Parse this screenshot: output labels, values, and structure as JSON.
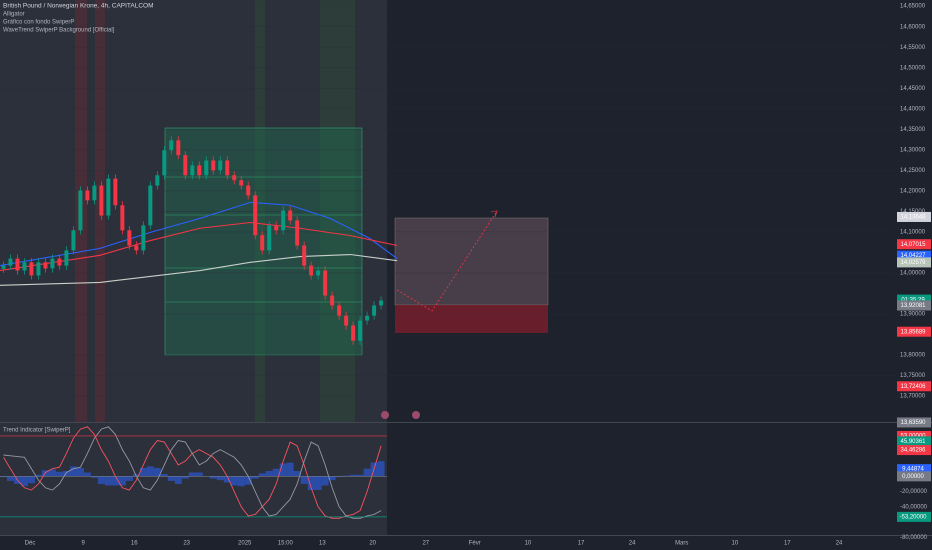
{
  "chart_data": [
    {
      "type": "candlestick",
      "title": "British Pound / Norwegian Krone, 4h, CAPITALCOM",
      "indicators": [
        "Alligator",
        "Gráfico con fondo SwiperP",
        "WaveTrend SwiperP Background [Official]"
      ],
      "x": [
        0,
        1,
        2,
        3,
        4,
        5,
        6,
        7,
        8,
        9,
        10,
        11,
        12,
        13,
        14,
        15,
        16,
        17,
        18,
        19,
        20,
        21,
        22,
        23,
        24,
        25,
        26,
        27,
        28,
        29,
        30,
        31,
        32,
        33,
        34,
        35,
        36,
        37,
        38,
        39,
        40,
        41,
        42,
        43,
        44,
        45,
        46,
        47,
        48,
        49,
        50,
        51,
        52,
        53,
        54
      ],
      "open": [
        14.01,
        14.018,
        14.035,
        14.006,
        14.026,
        13.994,
        14.026,
        14.011,
        14.035,
        14.018,
        14.055,
        14.104,
        14.201,
        14.177,
        14.213,
        14.14,
        14.23,
        14.165,
        14.104,
        14.067,
        14.055,
        14.116,
        14.213,
        14.238,
        14.299,
        14.323,
        14.287,
        14.238,
        14.262,
        14.238,
        14.274,
        14.25,
        14.274,
        14.238,
        14.226,
        14.213,
        14.189,
        14.092,
        14.055,
        14.116,
        14.104,
        14.152,
        14.128,
        14.067,
        14.018,
        13.994,
        14.006,
        13.945,
        13.921,
        13.896,
        13.872,
        13.835,
        13.884,
        13.896,
        13.921
      ],
      "high": [
        14.028,
        14.045,
        14.045,
        14.036,
        14.036,
        14.036,
        14.036,
        14.045,
        14.045,
        14.065,
        14.114,
        14.211,
        14.211,
        14.223,
        14.223,
        14.24,
        14.24,
        14.175,
        14.114,
        14.077,
        14.126,
        14.223,
        14.248,
        14.309,
        14.333,
        14.333,
        14.297,
        14.272,
        14.272,
        14.284,
        14.284,
        14.284,
        14.284,
        14.248,
        14.236,
        14.223,
        14.199,
        14.102,
        14.126,
        14.126,
        14.162,
        14.162,
        14.138,
        14.077,
        14.028,
        14.016,
        14.016,
        13.955,
        13.931,
        13.906,
        13.882,
        13.894,
        13.906,
        13.931,
        13.943
      ],
      "low": [
        14.0,
        14.008,
        13.996,
        13.996,
        13.984,
        13.984,
        14.001,
        14.001,
        14.008,
        14.008,
        14.045,
        14.094,
        14.167,
        14.167,
        14.13,
        14.13,
        14.155,
        14.094,
        14.057,
        14.045,
        14.045,
        14.106,
        14.203,
        14.228,
        14.289,
        14.277,
        14.228,
        14.228,
        14.228,
        14.228,
        14.24,
        14.24,
        14.228,
        14.216,
        14.203,
        14.179,
        14.082,
        14.045,
        14.045,
        14.094,
        14.094,
        14.118,
        14.057,
        14.008,
        13.984,
        13.984,
        13.935,
        13.911,
        13.886,
        13.862,
        13.825,
        13.825,
        13.874,
        13.886,
        13.911
      ],
      "close": [
        14.018,
        14.035,
        14.006,
        14.026,
        13.994,
        14.026,
        14.011,
        14.035,
        14.018,
        14.055,
        14.104,
        14.201,
        14.177,
        14.213,
        14.14,
        14.23,
        14.165,
        14.104,
        14.067,
        14.055,
        14.116,
        14.213,
        14.238,
        14.299,
        14.323,
        14.287,
        14.238,
        14.262,
        14.238,
        14.274,
        14.25,
        14.274,
        14.238,
        14.226,
        14.213,
        14.189,
        14.092,
        14.055,
        14.116,
        14.104,
        14.152,
        14.128,
        14.067,
        14.018,
        13.994,
        14.006,
        13.945,
        13.921,
        13.896,
        13.872,
        13.835,
        13.884,
        13.896,
        13.921,
        13.933
      ],
      "up_color": "#089981",
      "down_color": "#f23645",
      "overlays": [
        {
          "color": "#2962ff",
          "x": [
            -0.5,
            13.8,
            21.0,
            28.1,
            35.3,
            41.0,
            46.7,
            52.4,
            56.3
          ],
          "values": [
            14.018,
            14.06,
            14.099,
            14.133,
            14.172,
            14.165,
            14.133,
            14.084,
            14.035
          ]
        },
        {
          "color": "#f23645",
          "x": [
            -0.5,
            13.8,
            21.0,
            28.1,
            35.3,
            42.4,
            49.6,
            56.3
          ],
          "values": [
            14.006,
            14.043,
            14.079,
            14.109,
            14.123,
            14.109,
            14.091,
            14.067
          ]
        },
        {
          "color": "#c8d0c8",
          "x": [
            -0.5,
            13.8,
            28.1,
            35.3,
            42.4,
            49.6,
            56.3
          ],
          "values": [
            13.97,
            13.977,
            14.006,
            14.026,
            14.04,
            14.045,
            14.03
          ]
        }
      ],
      "xlim": [
        -0.5,
        127.5
      ],
      "ylim": [
        13.637,
        14.665
      ],
      "yticks": [
        {
          "value": 14.65,
          "label": "14,65000"
        },
        {
          "value": 14.6,
          "label": "14,60000"
        },
        {
          "value": 14.55,
          "label": "14,55000"
        },
        {
          "value": 14.5,
          "label": "14,50000"
        },
        {
          "value": 14.45,
          "label": "14,45000"
        },
        {
          "value": 14.4,
          "label": "14,40000"
        },
        {
          "value": 14.35,
          "label": "14,35000"
        },
        {
          "value": 14.3,
          "label": "14,30000"
        },
        {
          "value": 14.25,
          "label": "14,25000"
        },
        {
          "value": 14.2,
          "label": "14,20000"
        },
        {
          "value": 14.15,
          "label": "14,15000"
        },
        {
          "value": 14.1,
          "label": "14,10000"
        },
        {
          "value": 14.0,
          "label": "14,00000"
        },
        {
          "value": 13.9,
          "label": "13,90000"
        },
        {
          "value": 13.8,
          "label": "13,80000"
        },
        {
          "value": 13.75,
          "label": "13,75000"
        },
        {
          "value": 13.7,
          "label": "13,70000"
        }
      ],
      "xticks": [
        {
          "value": 3.8,
          "label": "Déc"
        },
        {
          "value": 11.4,
          "label": "9"
        },
        {
          "value": 18.7,
          "label": "16"
        },
        {
          "value": 26.2,
          "label": "23"
        },
        {
          "value": 34.5,
          "label": "2025"
        },
        {
          "value": 40.3,
          "label": "15:00"
        },
        {
          "value": 45.6,
          "label": "13"
        },
        {
          "value": 52.8,
          "label": "20"
        },
        {
          "value": 60.4,
          "label": "27"
        },
        {
          "value": 67.4,
          "label": "Févr"
        },
        {
          "value": 75.0,
          "label": "10"
        },
        {
          "value": 82.6,
          "label": "17"
        },
        {
          "value": 89.9,
          "label": "24"
        },
        {
          "value": 97.0,
          "label": "Mars"
        },
        {
          "value": 104.6,
          "label": "10"
        },
        {
          "value": 112.1,
          "label": "17"
        },
        {
          "value": 119.5,
          "label": "24"
        }
      ],
      "price_labels": [
        {
          "value": 14.13648,
          "label": "14,13648",
          "color": "#d1d4dc"
        },
        {
          "value": 14.07015,
          "label": "14,07015",
          "color": "#f23645"
        },
        {
          "value": 14.04227,
          "label": "14,04227",
          "color": "#2962ff"
        },
        {
          "value": 14.02579,
          "label": "14,02579",
          "color": "#b8c4b8"
        },
        {
          "value": 13.92081,
          "label": "13,92081",
          "color": "#787b86"
        },
        {
          "value": 13.85689,
          "label": "13,85689",
          "color": "#f23645"
        },
        {
          "value": 13.72406,
          "label": "13,72406",
          "color": "#f23645"
        },
        {
          "value": 13.6359,
          "label": "13,63590",
          "color": "#787b86"
        }
      ],
      "countdown": {
        "text": "01:35:29",
        "price": 13.934,
        "color": "#089981"
      }
    },
    {
      "type": "line",
      "title": "Trend Indicator [SwiperP]",
      "ylim": [
        -77,
        70
      ],
      "yticks": [
        {
          "value": -20,
          "label": "-20,00000"
        },
        {
          "value": -40,
          "label": "-40,00000"
        },
        {
          "value": -80,
          "label": "-80,00000"
        }
      ],
      "series": [
        {
          "color": "#f7525f",
          "values": [
            25,
            10,
            -5,
            -15,
            -18,
            -10,
            5,
            10,
            12,
            30,
            50,
            62,
            65,
            55,
            35,
            20,
            0,
            -15,
            -18,
            -5,
            15,
            35,
            47,
            45,
            30,
            15,
            20,
            30,
            35,
            30,
            25,
            15,
            0,
            -20,
            -40,
            -52,
            -50,
            -40,
            -30,
            -10,
            20,
            45,
            40,
            15,
            -15,
            -40,
            -52,
            -55,
            -55,
            -52,
            -50,
            -45,
            -20,
            10,
            40
          ]
        },
        {
          "color": "#9598a1",
          "values": [
            28,
            27,
            26,
            25,
            10,
            -5,
            -15,
            -18,
            -10,
            5,
            10,
            12,
            30,
            50,
            62,
            65,
            55,
            35,
            20,
            0,
            -15,
            -18,
            -5,
            15,
            35,
            47,
            45,
            30,
            15,
            20,
            30,
            35,
            30,
            25,
            15,
            0,
            -20,
            -40,
            -52,
            -50,
            -40,
            -30,
            -10,
            20,
            45,
            40,
            15,
            -15,
            -40,
            -52,
            -55,
            -55,
            -52,
            -50,
            -45
          ]
        }
      ],
      "histogram": {
        "color": "#2962ff",
        "values": [
          -1,
          -6,
          -10,
          -13,
          -9,
          2,
          8,
          9,
          6,
          7,
          13,
          11,
          5,
          -2,
          -10,
          -12,
          -12,
          -12,
          -6,
          3,
          11,
          13,
          11,
          3,
          -6,
          -10,
          -3,
          5,
          5,
          0,
          -3,
          -5,
          -8,
          -12,
          -13,
          -11,
          -3,
          4,
          7,
          10,
          17,
          18,
          7,
          -10,
          -18,
          -18,
          -12,
          -5,
          -1,
          1,
          2,
          2,
          10,
          18,
          20
        ]
      },
      "price_labels": [
        {
          "value": 53,
          "label": "53,00000",
          "color": "#f23645",
          "line": true
        },
        {
          "value": 45.90361,
          "label": "45,90361",
          "color": "#089981"
        },
        {
          "value": 34.46286,
          "label": "34,46286",
          "color": "#f23645"
        },
        {
          "value": 9.44874,
          "label": "9,44874",
          "color": "#2962ff"
        },
        {
          "value": 0,
          "label": "0,00000",
          "color": "#787b86",
          "line": true
        },
        {
          "value": -53.2,
          "label": "-53,20000",
          "color": "#089981",
          "line": true
        }
      ]
    }
  ]
}
